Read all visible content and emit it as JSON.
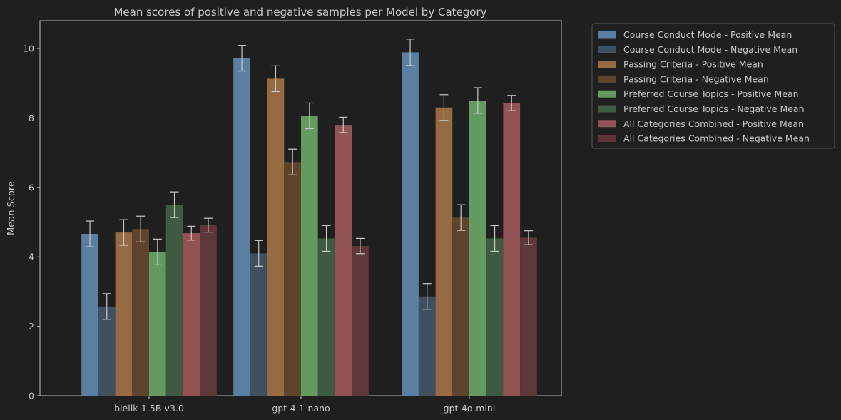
{
  "chart_data": {
    "type": "bar",
    "title": "Mean scores of positive and negative samples per Model by Category",
    "xlabel": "",
    "ylabel": "Mean Score",
    "ylim": [
      0,
      10.8
    ],
    "yticks": [
      0,
      2,
      4,
      6,
      8,
      10
    ],
    "legend_position": "outside top-right",
    "grid": false,
    "categories": [
      "bielik-1.5B-v3.0",
      "gpt-4-1-nano",
      "gpt-4o-mini"
    ],
    "series": [
      {
        "name": "Course Conduct Mode - Positive Mean",
        "color": "#5a7fa0",
        "values": [
          4.66,
          9.72,
          9.89
        ],
        "errors": [
          0.37,
          0.37,
          0.38
        ]
      },
      {
        "name": "Course Conduct Mode - Negative Mean",
        "color": "#3f5060",
        "values": [
          2.57,
          4.1,
          2.86
        ],
        "errors": [
          0.37,
          0.37,
          0.37
        ]
      },
      {
        "name": "Passing Criteria - Positive Mean",
        "color": "#966a42",
        "values": [
          4.7,
          9.13,
          8.3
        ],
        "errors": [
          0.37,
          0.37,
          0.37
        ]
      },
      {
        "name": "Passing Criteria - Negative Mean",
        "color": "#5e442c",
        "values": [
          4.8,
          6.73,
          5.13
        ],
        "errors": [
          0.37,
          0.37,
          0.37
        ]
      },
      {
        "name": "Preferred Course Topics - Positive Mean",
        "color": "#629a60",
        "values": [
          4.14,
          8.06,
          8.5
        ],
        "errors": [
          0.37,
          0.37,
          0.37
        ]
      },
      {
        "name": "Preferred Course Topics - Negative Mean",
        "color": "#3e5a40",
        "values": [
          5.5,
          4.53,
          4.53
        ],
        "errors": [
          0.37,
          0.37,
          0.37
        ]
      },
      {
        "name": "All Categories Combined - Positive Mean",
        "color": "#935253",
        "values": [
          4.68,
          7.8,
          8.43
        ],
        "errors": [
          0.2,
          0.22,
          0.22
        ]
      },
      {
        "name": "All Categories Combined - Negative Mean",
        "color": "#5d3739",
        "values": [
          4.91,
          4.31,
          4.55
        ],
        "errors": [
          0.2,
          0.22,
          0.2
        ]
      }
    ]
  }
}
